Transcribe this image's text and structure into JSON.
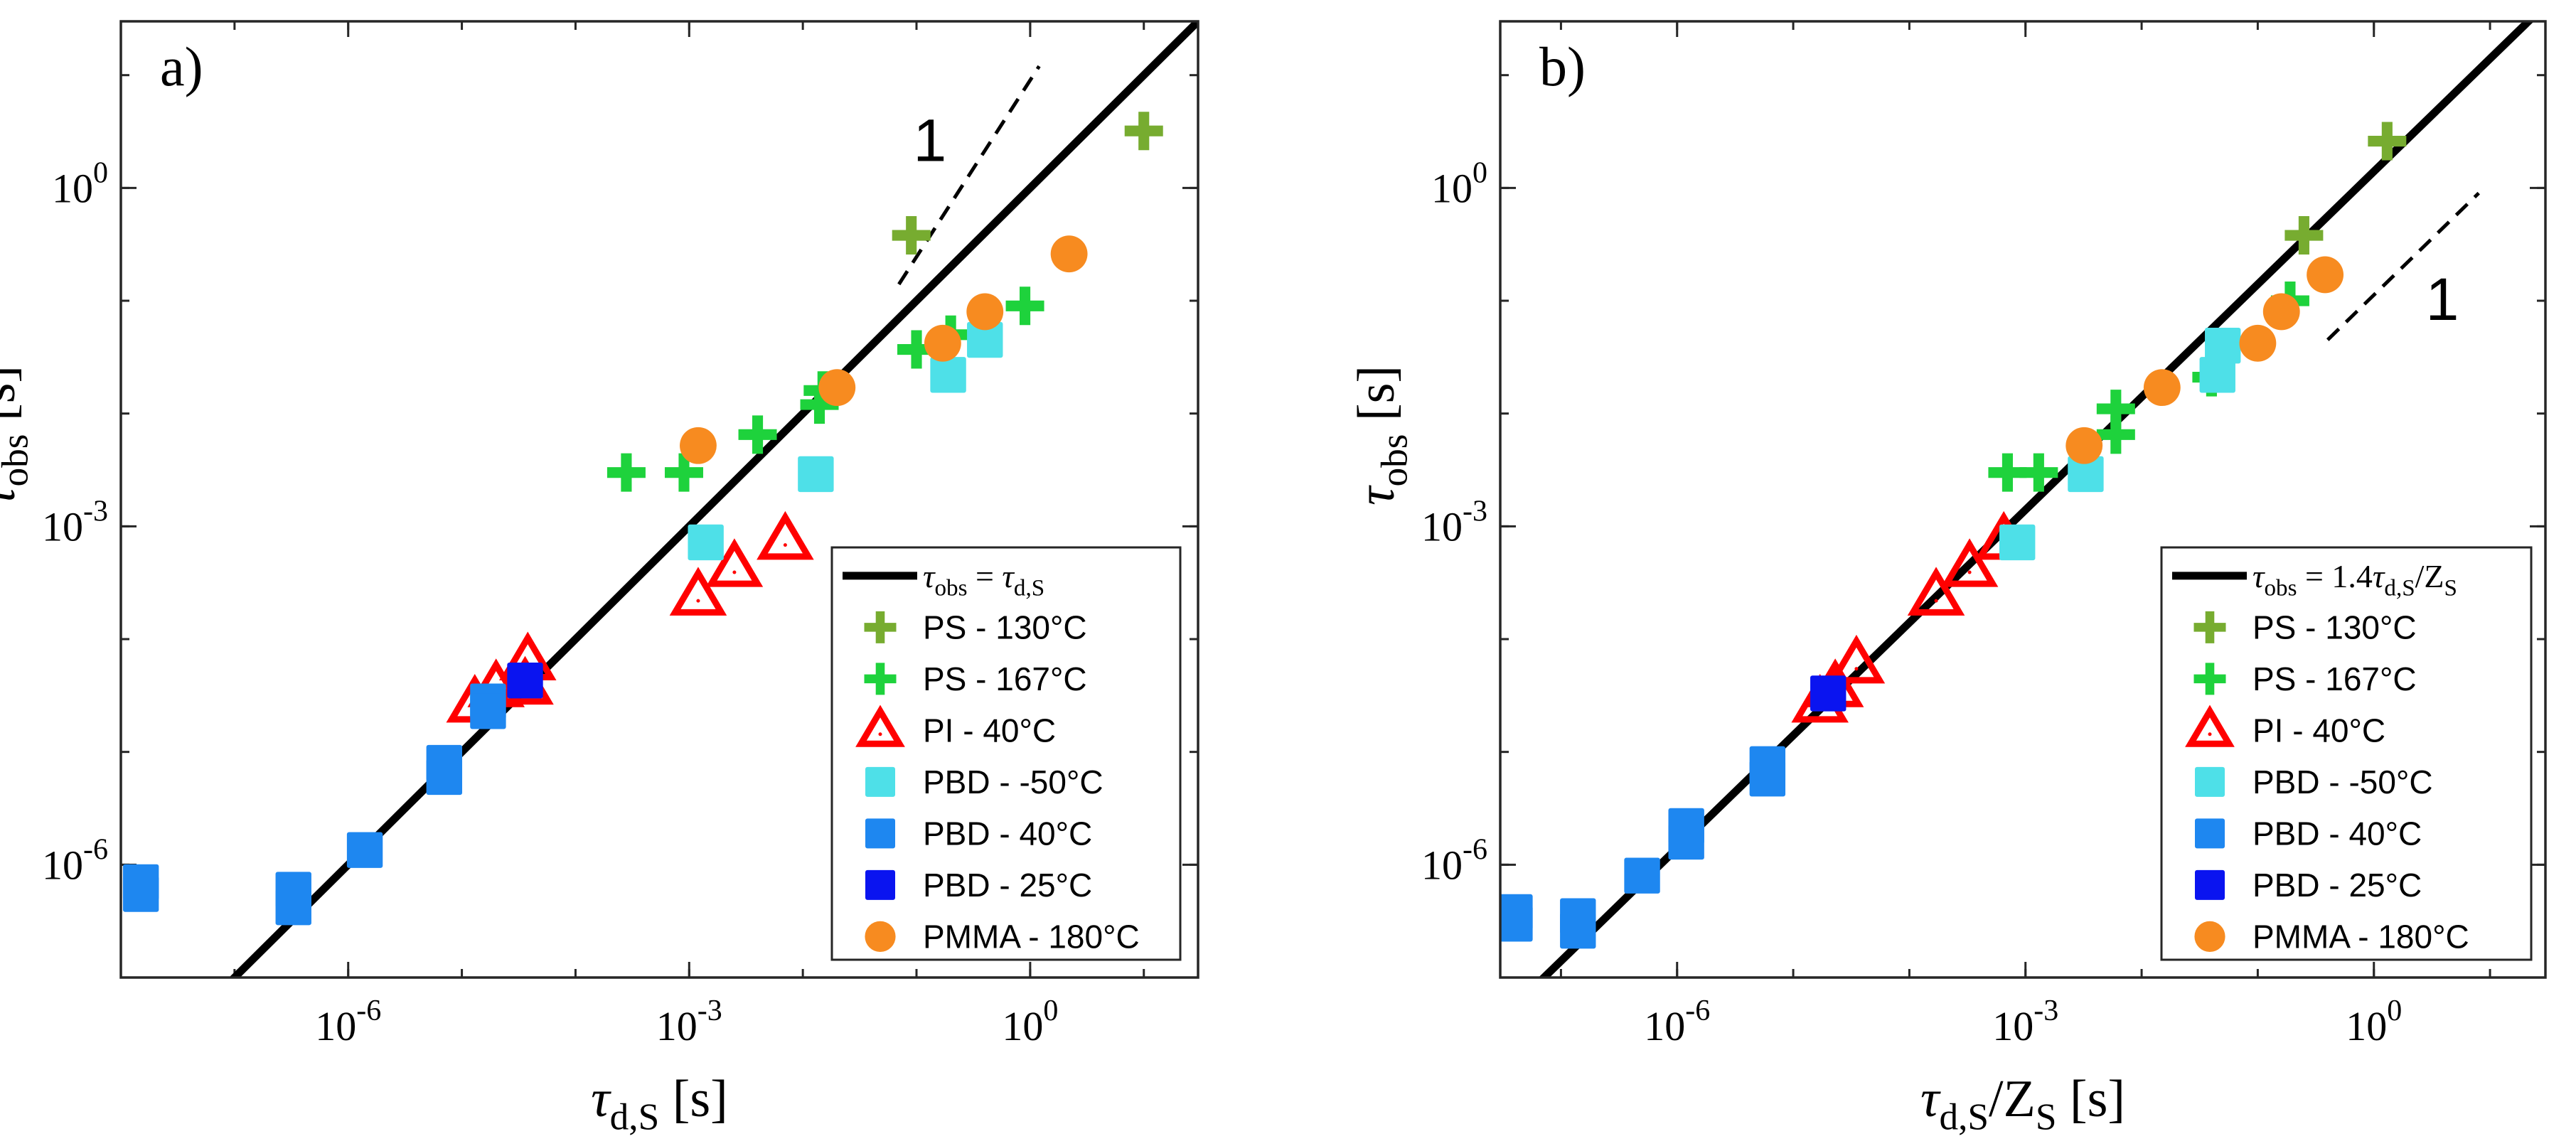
{
  "chart_data": [
    {
      "type": "scatter",
      "panel_label": "a)",
      "xlabel": "τd,S [s]",
      "ylabel": "τobs [s]",
      "xscale": "log",
      "yscale": "log",
      "xlim": [
        1e-08,
        30
      ],
      "ylim": [
        1e-07,
        30
      ],
      "xticks": [
        {
          "value": 1e-06,
          "label": "10-6"
        },
        {
          "value": 0.001,
          "label": "10-3"
        },
        {
          "value": 1,
          "label": "10^0"
        }
      ],
      "yticks": [
        {
          "value": 1e-06,
          "label": "10-6"
        },
        {
          "value": 0.001,
          "label": "10-3"
        },
        {
          "value": 1,
          "label": "10^0"
        }
      ],
      "grid": false,
      "legend_position": "bottom-right",
      "fit_line": {
        "label": "τobs = τd,S",
        "slope": 1,
        "prefactor": 1,
        "x_range": [
          1.3e-08,
          30
        ]
      },
      "slope_marker": {
        "label": "1",
        "x_range": [
          0.07,
          1.2
        ],
        "y_range": [
          0.14,
          12
        ]
      },
      "series": [
        {
          "name": "PS - 130°C",
          "marker": "plus",
          "color": "#77ac30",
          "points": [
            [
              0.09,
              0.38
            ],
            [
              10,
              3.2
            ]
          ]
        },
        {
          "name": "PS - 167°C",
          "marker": "plus",
          "color": "#1ed23c",
          "points": [
            [
              0.00028,
              0.003
            ],
            [
              0.0009,
              0.003
            ],
            [
              0.004,
              0.0065
            ],
            [
              0.014,
              0.012
            ],
            [
              0.015,
              0.016
            ],
            [
              0.1,
              0.037
            ],
            [
              0.2,
              0.05
            ],
            [
              0.9,
              0.09
            ]
          ]
        },
        {
          "name": "PI - 40°C",
          "marker": "triangle",
          "color": "#ff0000",
          "points": [
            [
              1.3e-05,
              2.7e-05
            ],
            [
              2e-05,
              3.7e-05
            ],
            [
              3.6e-05,
              3.9e-05
            ],
            [
              3.8e-05,
              6.4e-05
            ],
            [
              0.0012,
              0.00024
            ],
            [
              0.0025,
              0.00043
            ],
            [
              0.007,
              0.00075
            ]
          ]
        },
        {
          "name": "PBD - -50°C",
          "marker": "square",
          "color": "#4ee0e8",
          "points": [
            [
              0.0014,
              0.00072
            ],
            [
              0.013,
              0.0029
            ],
            [
              0.19,
              0.022
            ],
            [
              0.4,
              0.045
            ]
          ]
        },
        {
          "name": "PBD - 40°C",
          "marker": "square",
          "color": "#1e87f0",
          "points": [
            [
              1.5e-08,
              7e-07
            ],
            [
              1.5e-08,
              5.5e-07
            ],
            [
              3.3e-07,
              6e-07
            ],
            [
              3.3e-07,
              4.2e-07
            ],
            [
              1.4e-06,
              1.35e-06
            ],
            [
              7e-06,
              6e-06
            ],
            [
              7e-06,
              8e-06
            ],
            [
              1.7e-05,
              2.8e-05
            ],
            [
              1.7e-05,
              2.3e-05
            ]
          ]
        },
        {
          "name": "PBD - 25°C",
          "marker": "square",
          "color": "#0a14f0",
          "points": [
            [
              3.6e-05,
              4.3e-05
            ]
          ]
        },
        {
          "name": "PMMA - 180°C",
          "marker": "circle",
          "color": "#f78b20",
          "points": [
            [
              0.0012,
              0.0052
            ],
            [
              0.02,
              0.017
            ],
            [
              0.17,
              0.042
            ],
            [
              0.4,
              0.08
            ],
            [
              2.2,
              0.26
            ]
          ]
        }
      ]
    },
    {
      "type": "scatter",
      "panel_label": "b)",
      "xlabel": "τd,S/ZS [s]",
      "ylabel": "τobs [s]",
      "xscale": "log",
      "yscale": "log",
      "xlim": [
        3e-08,
        30
      ],
      "ylim": [
        1e-07,
        30
      ],
      "xticks": [
        {
          "value": 1e-06,
          "label": "10-6"
        },
        {
          "value": 0.001,
          "label": "10-3"
        },
        {
          "value": 1,
          "label": "10^0"
        }
      ],
      "yticks": [
        {
          "value": 1e-06,
          "label": "10-6"
        },
        {
          "value": 0.001,
          "label": "10-3"
        },
        {
          "value": 1,
          "label": "10^0"
        }
      ],
      "grid": false,
      "legend_position": "bottom-right",
      "fit_line": {
        "label": "τobs = 1.4τd,S/ZS",
        "slope": 1,
        "prefactor": 1.4,
        "x_range": [
          3e-08,
          30
        ]
      },
      "slope_marker": {
        "label": "1",
        "x_range": [
          0.4,
          8
        ],
        "y_range": [
          0.045,
          0.9
        ]
      },
      "series": [
        {
          "name": "PS - 130°C",
          "marker": "plus",
          "color": "#77ac30",
          "points": [
            [
              0.25,
              0.38
            ],
            [
              1.3,
              2.6
            ]
          ]
        },
        {
          "name": "PS - 167°C",
          "marker": "plus",
          "color": "#1ed23c",
          "points": [
            [
              0.0007,
              0.003
            ],
            [
              0.0013,
              0.003
            ],
            [
              0.006,
              0.0065
            ],
            [
              0.006,
              0.011
            ],
            [
              0.04,
              0.021
            ],
            [
              0.19,
              0.1
            ]
          ]
        },
        {
          "name": "PI - 40°C",
          "marker": "triangle",
          "color": "#ff0000",
          "points": [
            [
              1.7e-05,
              2.7e-05
            ],
            [
              2.3e-05,
              3.7e-05
            ],
            [
              3.5e-05,
              6e-05
            ],
            [
              0.00017,
              0.00024
            ],
            [
              0.00033,
              0.00043
            ],
            [
              0.00065,
              0.00075
            ]
          ]
        },
        {
          "name": "PBD - -50°C",
          "marker": "square",
          "color": "#4ee0e8",
          "points": [
            [
              0.00085,
              0.00072
            ],
            [
              0.0033,
              0.0029
            ],
            [
              0.045,
              0.022
            ],
            [
              0.05,
              0.04
            ]
          ]
        },
        {
          "name": "PBD - 40°C",
          "marker": "square",
          "color": "#1e87f0",
          "points": [
            [
              4e-08,
              3.8e-07
            ],
            [
              4e-08,
              3e-07
            ],
            [
              1.4e-07,
              3.5e-07
            ],
            [
              1.4e-07,
              2.6e-07
            ],
            [
              5e-07,
              8e-07
            ],
            [
              1.2e-06,
              1.6e-06
            ],
            [
              1.2e-06,
              2.2e-06
            ],
            [
              6e-06,
              5.8e-06
            ],
            [
              6e-06,
              7.8e-06
            ]
          ]
        },
        {
          "name": "PBD - 25°C",
          "marker": "square",
          "color": "#0a14f0",
          "points": [
            [
              2e-05,
              3.3e-05
            ]
          ]
        },
        {
          "name": "PMMA - 180°C",
          "marker": "circle",
          "color": "#f78b20",
          "points": [
            [
              0.0032,
              0.0052
            ],
            [
              0.015,
              0.017
            ],
            [
              0.1,
              0.042
            ],
            [
              0.16,
              0.08
            ],
            [
              0.38,
              0.17
            ]
          ]
        }
      ]
    }
  ]
}
